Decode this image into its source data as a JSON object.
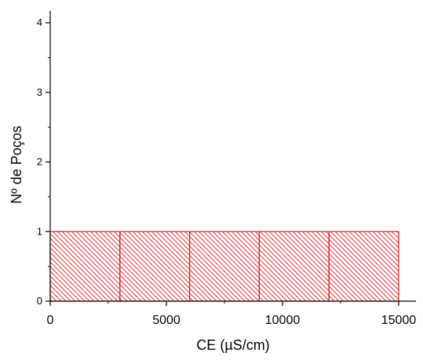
{
  "chart_data": {
    "type": "bar",
    "title": "",
    "xlabel": "CE (µS/cm)",
    "ylabel": "Nº de Poços",
    "xlim": [
      0,
      15000
    ],
    "ylim": [
      0,
      4.2
    ],
    "x_ticks": [
      0,
      5000,
      10000,
      15000
    ],
    "x_tick_labels": [
      "0",
      "5000",
      "10000",
      "15000"
    ],
    "y_ticks": [
      0,
      1,
      2,
      3,
      4
    ],
    "y_tick_labels": [
      "0",
      "1",
      "2",
      "3",
      "4"
    ],
    "bins": [
      {
        "start": 0,
        "end": 3000,
        "value": 1
      },
      {
        "start": 3000,
        "end": 6000,
        "value": 1
      },
      {
        "start": 6000,
        "end": 9000,
        "value": 1
      },
      {
        "start": 9000,
        "end": 12000,
        "value": 1
      },
      {
        "start": 12000,
        "end": 15000,
        "value": 1
      }
    ],
    "bar_color": "#e41a1c",
    "bar_fill": "diagonal-hatch",
    "grid": false,
    "legend": false
  }
}
